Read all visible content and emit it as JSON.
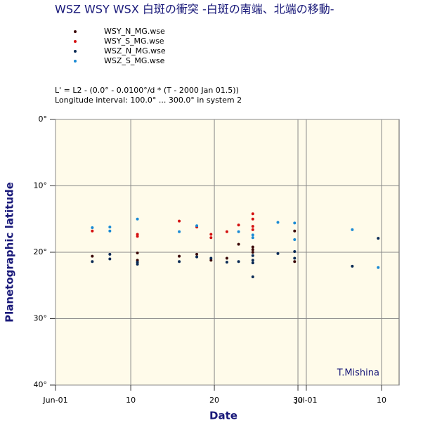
{
  "chart_data": {
    "type": "scatter",
    "title": "WSZ  WSY  WSX  白斑の衝突  -白斑の南端、北端の移動-",
    "subtitle": [
      "L' = L2 - (0.0° - 0.0100°/d * (T - 2000 Jan 01.5))",
      "Longitude interval: 100.0° ... 300.0° in system 2"
    ],
    "x_label": "Date",
    "y_label": "Planetographic latitude",
    "annotation": "T.Mishina",
    "xlim": [
      1,
      42.1
    ],
    "xticks": [
      {
        "value": 1,
        "label": "Jun-01"
      },
      10,
      20,
      30,
      {
        "value": 31,
        "label": "Jul-01"
      },
      {
        "value": 40,
        "label": "10"
      }
    ],
    "ylim": [
      0,
      40
    ],
    "y_inverted": true,
    "yticks": [
      {
        "value": 0,
        "label": "0°"
      },
      {
        "value": 10,
        "label": "10°"
      },
      {
        "value": 20,
        "label": "20°"
      },
      {
        "value": 30,
        "label": "30°"
      },
      {
        "value": 40,
        "label": "40°"
      }
    ],
    "grid": true,
    "series": [
      {
        "name": "WSY_N_MG.wse",
        "color": "#3a0808",
        "x": [
          5.4,
          10.8,
          10.8,
          15.8,
          17.9,
          19.6,
          21.5,
          22.9,
          24.6,
          24.6,
          24.6,
          29.6,
          29.6
        ],
        "values": [
          20.6,
          20.1,
          21.2,
          20.6,
          20.3,
          21.2,
          20.9,
          18.8,
          19.2,
          19.6,
          20.0,
          16.8,
          21.4
        ]
      },
      {
        "name": "WSY_S_MG.wse",
        "color": "#d41010",
        "x": [
          5.4,
          10.8,
          10.8,
          15.8,
          17.9,
          19.6,
          19.6,
          21.5,
          22.9,
          24.6,
          24.6,
          24.6,
          24.6
        ],
        "values": [
          16.8,
          17.3,
          17.6,
          15.3,
          16.2,
          17.3,
          17.8,
          16.9,
          15.9,
          14.2,
          15.0,
          16.1,
          16.6
        ]
      },
      {
        "name": "WSZ_N_MG.wse",
        "color": "#0a2a55",
        "x": [
          5.4,
          7.5,
          7.5,
          10.8,
          10.8,
          15.8,
          17.9,
          19.6,
          21.5,
          22.9,
          24.6,
          24.6,
          24.6,
          24.6,
          27.6,
          29.6,
          29.6,
          36.5,
          39.6
        ],
        "values": [
          21.4,
          20.3,
          21.0,
          21.5,
          21.8,
          21.4,
          20.7,
          20.9,
          21.5,
          21.4,
          20.5,
          21.2,
          21.6,
          23.7,
          20.2,
          19.9,
          20.9,
          22.1,
          17.9
        ]
      },
      {
        "name": "WSZ_S_MG.wse",
        "color": "#1a8ad4",
        "x": [
          5.4,
          7.5,
          7.5,
          10.8,
          15.8,
          17.9,
          22.9,
          24.6,
          24.6,
          27.6,
          29.6,
          29.6,
          36.5,
          39.6
        ],
        "values": [
          16.3,
          16.2,
          16.8,
          15.0,
          16.9,
          16.0,
          16.9,
          17.4,
          17.8,
          15.5,
          15.6,
          18.1,
          16.6,
          22.3
        ]
      }
    ]
  }
}
